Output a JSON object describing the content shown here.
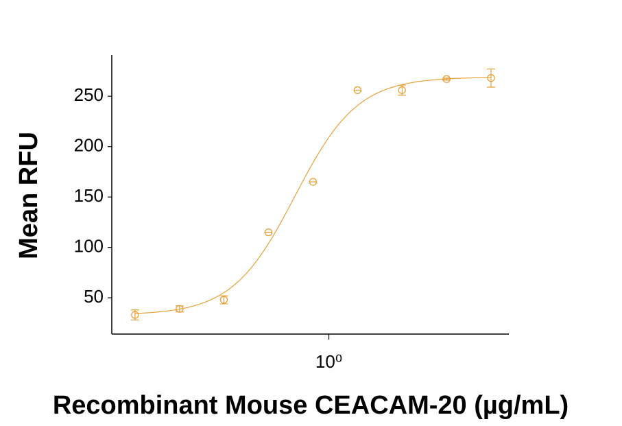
{
  "chart_data": {
    "type": "scatter",
    "x_label": "Recombinant Mouse CEACAM-20 (µg/mL)",
    "y_label": "Mean RFU",
    "x": [
      0.0488,
      0.0977,
      0.195,
      0.39,
      0.781,
      1.5625,
      3.125,
      6.25,
      12.5
    ],
    "series": [
      {
        "color": "#e6a038",
        "values": [
          33,
          39,
          48,
          115,
          165,
          256,
          256,
          267,
          268
        ],
        "errors": [
          5,
          3,
          4,
          0,
          0,
          0,
          5,
          1,
          9
        ]
      }
    ],
    "fit": {
      "bottom": 33,
      "top": 269,
      "ec50": 0.59,
      "hill": 2.05
    },
    "x_log": true,
    "xlim": [
      0.034,
      16.5
    ],
    "xticks": [
      {
        "value": 1,
        "label": "10⁰"
      }
    ],
    "ylim": [
      14,
      291
    ],
    "yticks": [
      50,
      100,
      150,
      200,
      250
    ]
  }
}
